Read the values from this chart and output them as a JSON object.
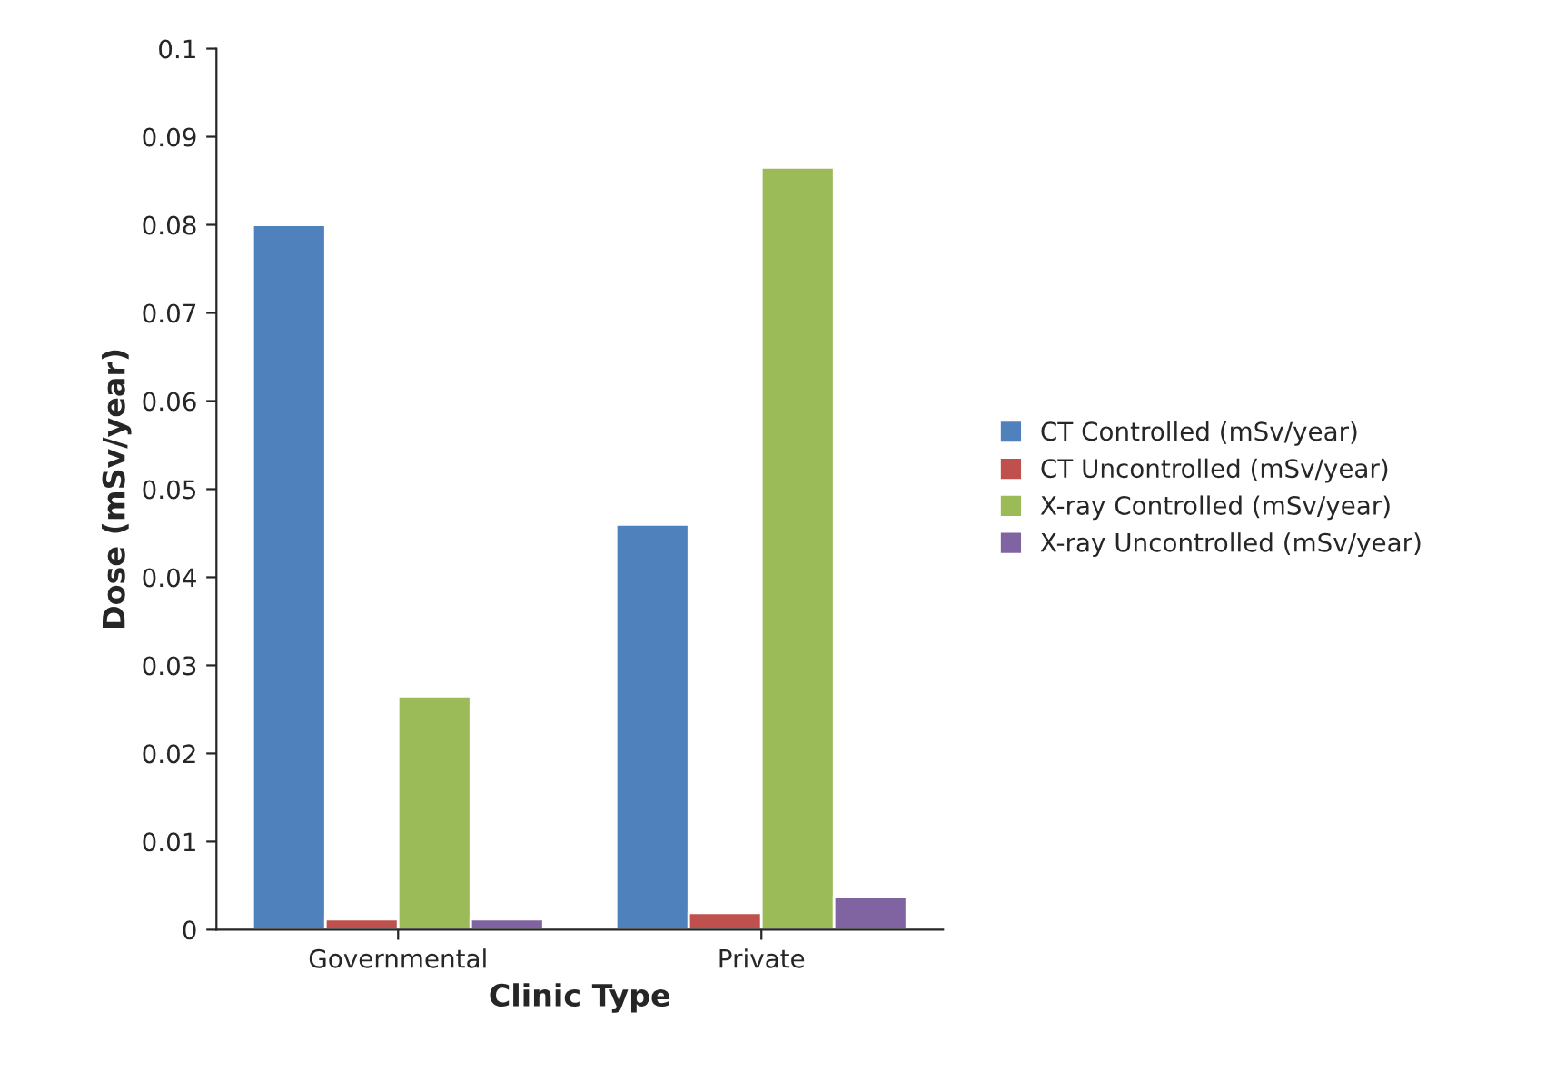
{
  "chart_data": {
    "type": "bar",
    "xlabel": "Clinic Type",
    "ylabel": "Dose (mSv/year)",
    "categories": [
      "Governmental",
      "Private"
    ],
    "series": [
      {
        "name": "CT Controlled (mSv/year)",
        "color": "#4f81bd",
        "values": [
          0.08,
          0.046
        ]
      },
      {
        "name": "CT Uncontrolled (mSv/year)",
        "color": "#c0504d",
        "values": [
          0.0012,
          0.0019
        ]
      },
      {
        "name": "X-ray Controlled (mSv/year)",
        "color": "#9bbb59",
        "values": [
          0.0265,
          0.0865
        ]
      },
      {
        "name": "X-ray Uncontrolled (mSv/year)",
        "color": "#8064a2",
        "values": [
          0.0012,
          0.0037
        ]
      }
    ],
    "ylim": [
      0,
      0.1
    ],
    "yticks": [
      0,
      0.01,
      0.02,
      0.03,
      0.04,
      0.05,
      0.06,
      0.07,
      0.08,
      0.09,
      0.1
    ],
    "grid": false,
    "legend": "right"
  }
}
